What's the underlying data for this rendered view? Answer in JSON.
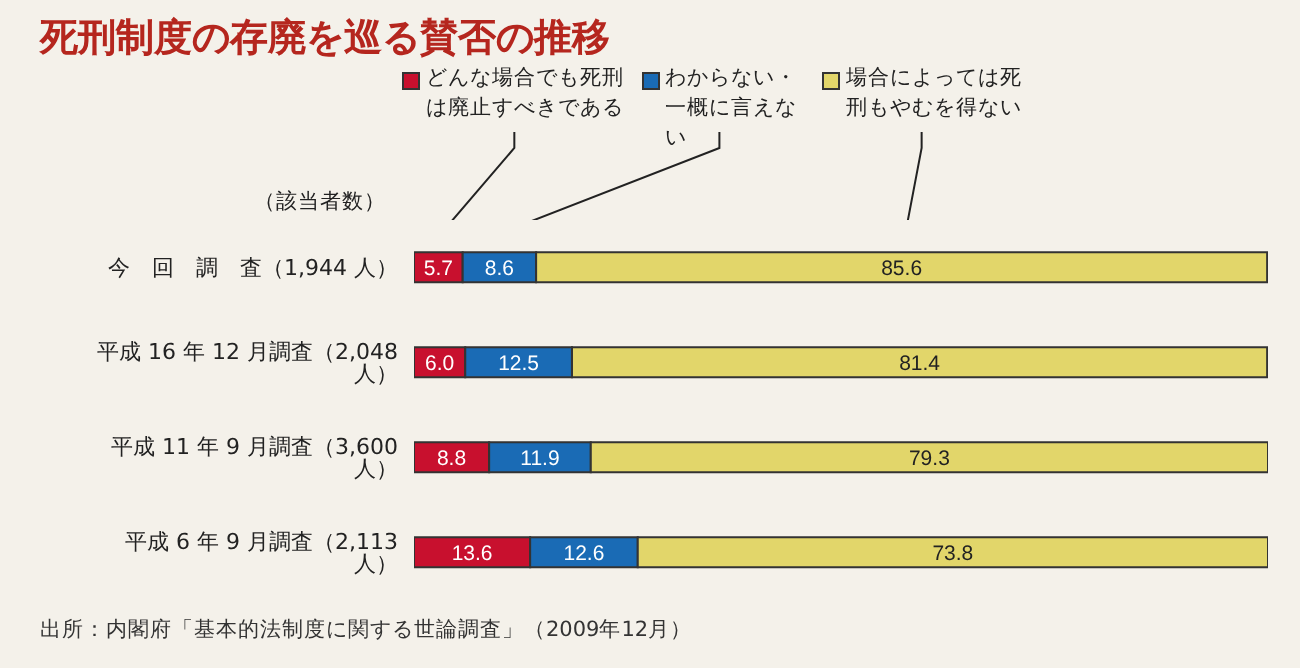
{
  "chart_data": {
    "type": "bar",
    "orientation": "horizontal",
    "stacked": true,
    "title": "死刑制度の存廃を巡る賛否の推移",
    "ylabel": "（該当者数）",
    "categories": [
      "今　回　調　査（1,944 人）",
      "平成 16 年 12 月調査（2,048 人）",
      "平成 11 年 9 月調査（3,600 人）",
      "平成 6 年 9 月調査（2,113 人）"
    ],
    "series": [
      {
        "name": "どんな場合でも死刑は廃止すべきである",
        "color": "#c8102e",
        "values": [
          5.7,
          6.0,
          8.8,
          13.6
        ],
        "value_labels": [
          "5.7",
          "6.0",
          "8.8",
          "13.6"
        ]
      },
      {
        "name": "わからない・一概に言えない",
        "color": "#1a6bb5",
        "values": [
          8.6,
          12.5,
          11.9,
          12.6
        ],
        "value_labels": [
          "8.6",
          "12.5",
          "11.9",
          "12.6"
        ]
      },
      {
        "name": "場合によっては死刑もやむを得ない",
        "color": "#e2d66a",
        "values": [
          85.6,
          81.4,
          79.3,
          73.8
        ],
        "value_labels": [
          "85.6",
          "81.4",
          "79.3",
          "73.8"
        ]
      }
    ],
    "xlim": [
      0,
      100
    ],
    "tick_labels": "y",
    "legend": "top",
    "grid": false,
    "annotations": [
      "出所：内閣府「基本的法制度に関する世論調査」（2009年12月）"
    ]
  }
}
